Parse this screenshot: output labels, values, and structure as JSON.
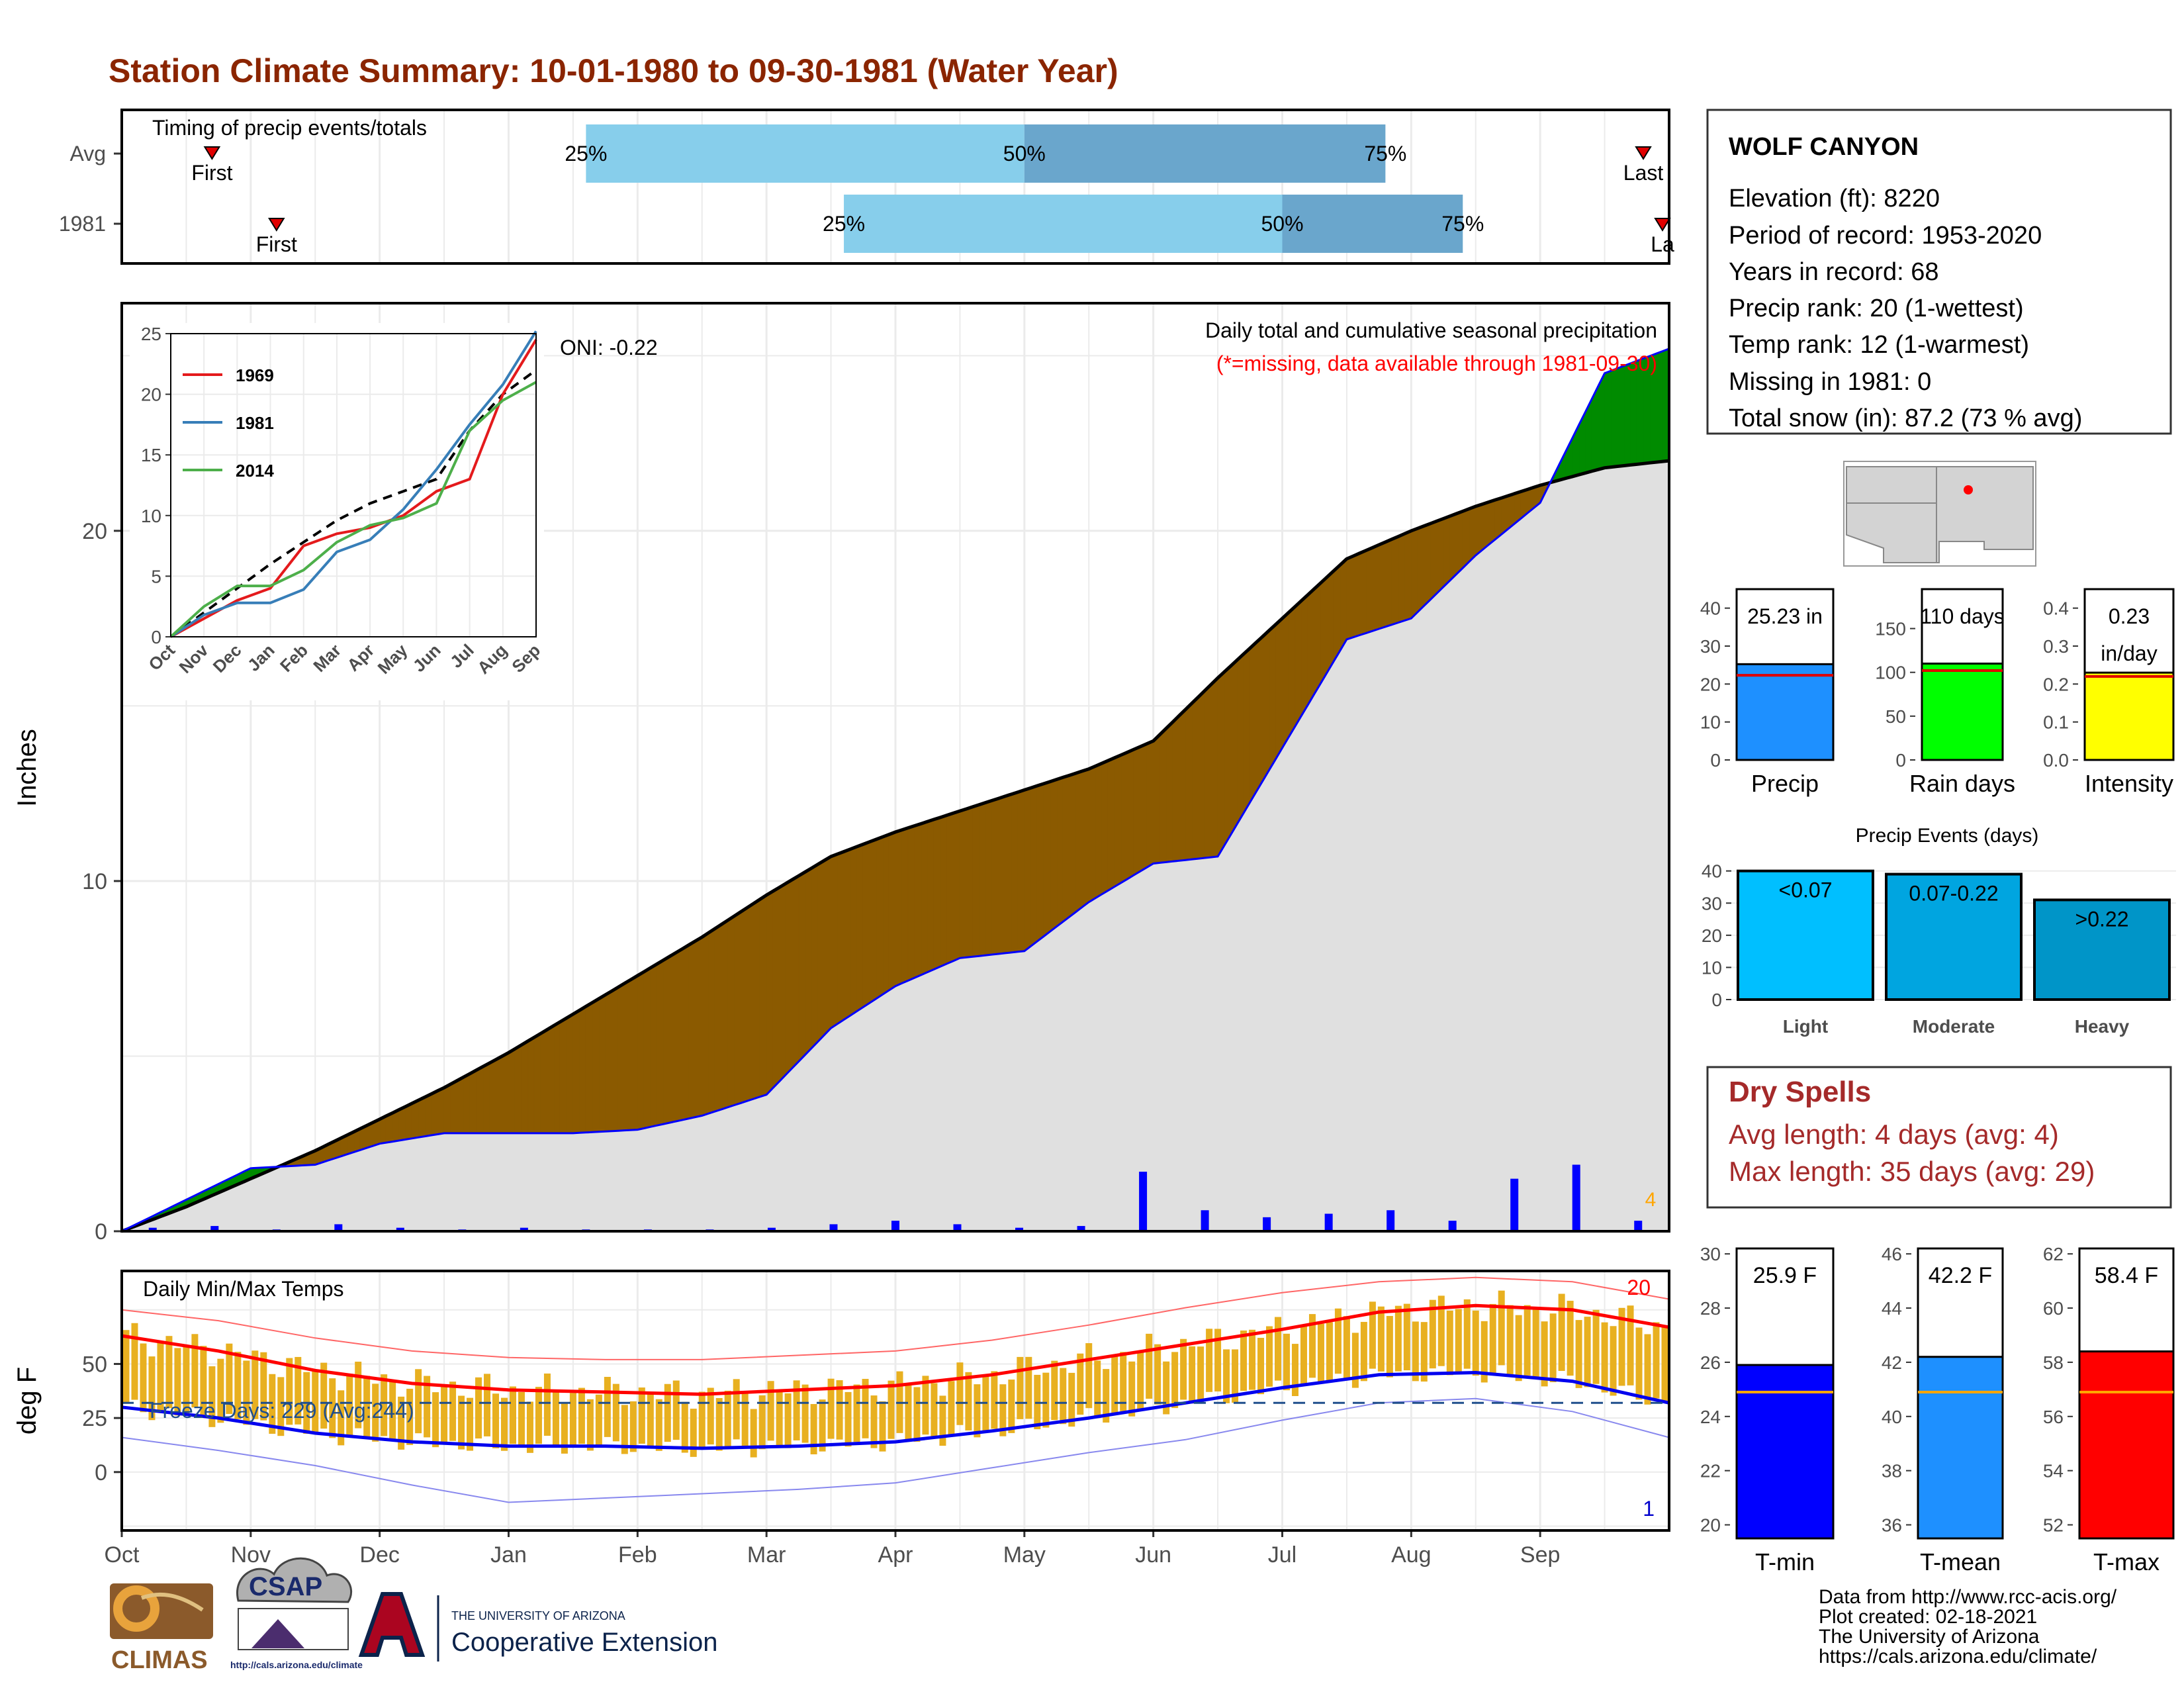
{
  "page": {
    "title": "Station Climate Summary: 10-01-1980 to 09-30-1981 (Water Year)",
    "footer_lines": [
      "Data from http://www.rcc-acis.org/",
      "Plot created: 02-18-2021",
      "The University of Arizona",
      "https://cals.arizona.edu/climate/"
    ],
    "logos": {
      "climas": "CLIMAS",
      "csap": "CSAP",
      "csap_url": "http://cals.arizona.edu/climate",
      "ua_line1": "THE UNIVERSITY OF ARIZONA",
      "ua_line2": "Cooperative Extension"
    },
    "colors": {
      "title": "#8b2500",
      "dry_spell_text": "#a52a2a",
      "light_blue": "#87ceeb",
      "mid_blue": "#6aa6cc",
      "deficit": "#8b5a00",
      "surplus": "#008b00",
      "normal_fill": "#e0e0e0"
    }
  },
  "station": {
    "name": "WOLF CANYON",
    "lines": [
      "Elevation (ft): 8220",
      "Period of record: 1953-2020",
      "Years in record: 68",
      "Precip rank: 20 (1-wettest)",
      "Temp rank: 12 (1-warmest)",
      "Missing in 1981: 0",
      "Total snow (in): 87.2 (73 % avg)"
    ]
  },
  "dry_spells": {
    "title": "Dry Spells",
    "avg_line": "Avg length: 4 days (avg: 4)",
    "max_line": "Max length: 35 days (avg: 29)"
  },
  "chart_data": [
    {
      "id": "timing",
      "type": "bar",
      "title": "Timing of precip events/totals",
      "rows": [
        {
          "label": "Avg",
          "first_label": "First",
          "last_label": "Last",
          "q25": "25%",
          "q50": "50%",
          "q75": "75%",
          "first_month": 0.7,
          "p25_month": 3.6,
          "p50_month": 7.0,
          "p75_month": 9.8,
          "last_month": 11.8
        },
        {
          "label": "1981",
          "first_label": "First",
          "last_label": "La",
          "q25": "25%",
          "q50": "50%",
          "q75": "75%",
          "first_month": 1.2,
          "p25_month": 5.6,
          "p50_month": 9.0,
          "p75_month": 10.4,
          "last_month": 12.0
        }
      ],
      "x_unit": "months since Oct 1"
    },
    {
      "id": "cumulative",
      "type": "area",
      "title": "Daily total and cumulative seasonal precipitation",
      "subtitle": "(*=missing, data available through 1981-09-30)",
      "ylabel": "Inches",
      "ylim": [
        0,
        26.5
      ],
      "yticks": [
        0,
        10,
        20
      ],
      "oni": "ONI: -0.22",
      "heavy_count": "4",
      "x_month_index": [
        0,
        0.5,
        1,
        1.5,
        2,
        2.5,
        3,
        3.5,
        4,
        4.5,
        5,
        5.5,
        6,
        6.5,
        7,
        7.5,
        8,
        8.5,
        9,
        9.5,
        10,
        10.5,
        11,
        11.5,
        12
      ],
      "normal": [
        0,
        0.7,
        1.5,
        2.3,
        3.2,
        4.1,
        5.1,
        6.2,
        7.3,
        8.4,
        9.6,
        10.7,
        11.4,
        12.0,
        12.6,
        13.2,
        14.0,
        15.8,
        17.5,
        19.2,
        20.0,
        20.7,
        21.3,
        21.8,
        22.0
      ],
      "observed": [
        0,
        0.9,
        1.8,
        1.9,
        2.5,
        2.8,
        2.8,
        2.8,
        2.9,
        3.3,
        3.9,
        5.8,
        7.0,
        7.8,
        8.0,
        9.4,
        10.5,
        10.7,
        13.8,
        16.9,
        17.5,
        19.3,
        20.8,
        24.5,
        25.2
      ],
      "daily_precip_inches": [
        0.1,
        0.15,
        0.05,
        0.2,
        0.1,
        0.05,
        0.1,
        0.05,
        0.05,
        0.05,
        0.1,
        0.2,
        0.3,
        0.2,
        0.1,
        0.15,
        1.7,
        0.6,
        0.4,
        0.5,
        0.6,
        0.3,
        1.5,
        1.9,
        0.3
      ],
      "inset": {
        "type": "line",
        "xticks": [
          "Oct",
          "Nov",
          "Dec",
          "Jan",
          "Feb",
          "Mar",
          "Apr",
          "May",
          "Jun",
          "Jul",
          "Aug",
          "Sep"
        ],
        "ylim": [
          0,
          25
        ],
        "yticks": [
          0,
          5,
          10,
          15,
          20,
          25
        ],
        "series": [
          {
            "name": "1969",
            "color": "#e41a1c",
            "values": [
              0,
              1.5,
              3.0,
              4.0,
              7.5,
              8.5,
              9.0,
              10.0,
              12.0,
              13.0,
              20.0,
              24.5
            ]
          },
          {
            "name": "1981",
            "color": "#377eb8",
            "values": [
              0,
              1.8,
              2.8,
              2.8,
              3.9,
              7.0,
              8.0,
              10.5,
              13.8,
              17.5,
              20.8,
              25.2
            ]
          },
          {
            "name": "2014",
            "color": "#4daf4a",
            "values": [
              0,
              2.5,
              4.2,
              4.2,
              5.5,
              7.8,
              9.2,
              9.8,
              11.0,
              17.0,
              19.5,
              21.0
            ]
          }
        ],
        "normal_values": [
          0,
          2.0,
          4.0,
          6.0,
          7.8,
          9.6,
          11.0,
          12.0,
          13.0,
          17.0,
          20.0,
          22.0
        ]
      }
    },
    {
      "id": "temps",
      "type": "line",
      "title": "Daily Min/Max Temps",
      "ylabel": "deg F",
      "ylim": [
        -27,
        93
      ],
      "yticks": [
        0,
        25,
        50
      ],
      "freeze_label": "Freeze Days: 229 (Avg:244)",
      "record_high_count": "20",
      "record_low_count": "1",
      "xticks": [
        "Oct",
        "Nov",
        "Dec",
        "Jan",
        "Feb",
        "Mar",
        "Apr",
        "May",
        "Jun",
        "Jul",
        "Aug",
        "Sep"
      ],
      "freeze_line": 32,
      "avg_max": [
        63,
        56,
        47,
        41,
        38,
        37,
        36,
        38,
        40,
        45,
        52,
        59,
        66,
        74,
        77,
        75,
        67
      ],
      "avg_min": [
        30,
        25,
        18,
        14,
        12,
        12,
        11,
        12,
        14,
        19,
        25,
        32,
        39,
        45,
        46,
        42,
        32
      ],
      "record_max": [
        75,
        70,
        62,
        56,
        53,
        52,
        52,
        54,
        56,
        61,
        68,
        76,
        83,
        88,
        90,
        88,
        80
      ],
      "record_min": [
        16,
        10,
        3,
        -6,
        -14,
        -12,
        -10,
        -8,
        -5,
        2,
        9,
        15,
        24,
        32,
        34,
        28,
        16
      ]
    },
    {
      "id": "totals",
      "type": "bar",
      "categories": [
        "Precip",
        "Rain days",
        "Intensity"
      ],
      "labels": [
        "25.23 in",
        "110 days",
        "0.23 in/day"
      ],
      "values": [
        25.23,
        110,
        0.23
      ],
      "averages": [
        22.3,
        102,
        0.22
      ],
      "ylims": [
        [
          0,
          45
        ],
        [
          0,
          195
        ],
        [
          0,
          0.45
        ]
      ],
      "yticks": [
        [
          "0",
          "10",
          "20",
          "30",
          "40"
        ],
        [
          "0",
          "50",
          "100",
          "150"
        ],
        [
          "0.0",
          "0.1",
          "0.2",
          "0.3",
          "0.4"
        ]
      ],
      "colors": [
        "#1e90ff",
        "#00ff00",
        "#ffff00"
      ]
    },
    {
      "id": "events",
      "type": "bar",
      "title": "Precip Events (days)",
      "categories": [
        "Light",
        "Moderate",
        "Heavy"
      ],
      "labels": [
        "<0.07",
        "0.07-0.22",
        ">0.22"
      ],
      "values": [
        40,
        39,
        31
      ],
      "ylim": [
        0,
        42
      ],
      "yticks": [
        0,
        10,
        20,
        30,
        40
      ],
      "colors": [
        "#00bfff",
        "#00a5e0",
        "#0095c8"
      ]
    },
    {
      "id": "temp_totals",
      "type": "bar",
      "categories": [
        "T-min",
        "T-mean",
        "T-max"
      ],
      "labels": [
        "25.9 F",
        "42.2 F",
        "58.4 F"
      ],
      "values": [
        25.9,
        42.2,
        58.4
      ],
      "averages": [
        24.9,
        40.9,
        56.9
      ],
      "ylims": [
        [
          19.5,
          30.2
        ],
        [
          35.5,
          46.2
        ],
        [
          51.5,
          62.2
        ]
      ],
      "yticks": [
        [
          "20",
          "22",
          "24",
          "26",
          "28",
          "30"
        ],
        [
          "36",
          "38",
          "40",
          "42",
          "44",
          "46"
        ],
        [
          "52",
          "54",
          "56",
          "58",
          "60",
          "62"
        ]
      ],
      "colors": [
        "#0000ff",
        "#1e90ff",
        "#ff0000"
      ]
    }
  ]
}
